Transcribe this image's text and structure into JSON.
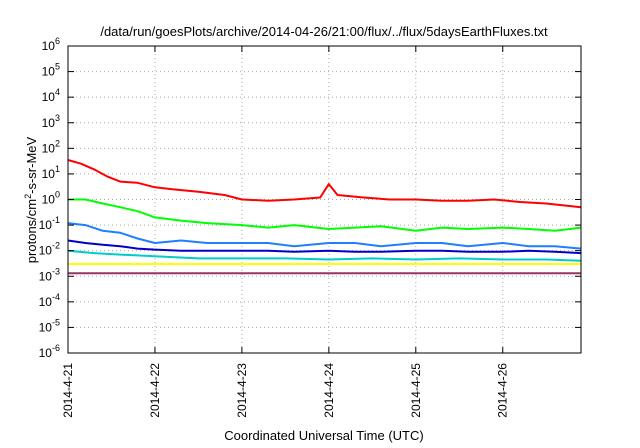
{
  "chart_data": {
    "type": "line",
    "title": "/data/run/goesPlots/archive/2014-04-26/21:00/flux/../flux/5daysEarthFluxes.txt",
    "xlabel": "Coordinated Universal Time (UTC)",
    "ylabel": "protons/cm²-s-sr-MeV",
    "ylabel_parts": {
      "pre": "protons/cm",
      "sup": "2",
      "post": "-s-sr-MeV"
    },
    "yscale": "log",
    "ylim": [
      1e-06,
      1000000.0
    ],
    "xlim": [
      0,
      5.9
    ],
    "x_ticks": [
      {
        "value": 0,
        "label": "2014-4-21"
      },
      {
        "value": 1,
        "label": "2014-4-22"
      },
      {
        "value": 2,
        "label": "2014-4-23"
      },
      {
        "value": 3,
        "label": "2014-4-24"
      },
      {
        "value": 4,
        "label": "2014-4-25"
      },
      {
        "value": 5,
        "label": "2014-4-26"
      }
    ],
    "y_ticks": [
      {
        "value": -6,
        "base": "10",
        "exp": "-6"
      },
      {
        "value": -5,
        "base": "10",
        "exp": "-5"
      },
      {
        "value": -4,
        "base": "10",
        "exp": "-4"
      },
      {
        "value": -3,
        "base": "10",
        "exp": "-3"
      },
      {
        "value": -2,
        "base": "10",
        "exp": "-2"
      },
      {
        "value": -1,
        "base": "10",
        "exp": "-1"
      },
      {
        "value": 0,
        "base": "10",
        "exp": "0"
      },
      {
        "value": 1,
        "base": "10",
        "exp": "1"
      },
      {
        "value": 2,
        "base": "10",
        "exp": "2"
      },
      {
        "value": 3,
        "base": "10",
        "exp": "3"
      },
      {
        "value": 4,
        "base": "10",
        "exp": "4"
      },
      {
        "value": 5,
        "base": "10",
        "exp": "5"
      },
      {
        "value": 6,
        "base": "10",
        "exp": "6"
      }
    ],
    "grid": true,
    "series": [
      {
        "color": "#ff0000",
        "x": [
          0,
          0.15,
          0.3,
          0.45,
          0.6,
          0.8,
          1.0,
          1.2,
          1.5,
          1.8,
          2.0,
          2.3,
          2.6,
          2.9,
          3.0,
          3.1,
          3.4,
          3.7,
          4.0,
          4.3,
          4.6,
          4.9,
          5.2,
          5.5,
          5.9
        ],
        "y": [
          35,
          25,
          15,
          8,
          5,
          4.5,
          3,
          2.5,
          2,
          1.5,
          1,
          0.9,
          1.0,
          1.2,
          4,
          1.5,
          1.2,
          1.0,
          1.0,
          0.9,
          0.9,
          1.0,
          0.8,
          0.7,
          0.5
        ]
      },
      {
        "color": "#00ff00",
        "x": [
          0,
          0.2,
          0.4,
          0.6,
          0.8,
          1.0,
          1.3,
          1.6,
          2.0,
          2.3,
          2.6,
          3.0,
          3.3,
          3.6,
          4.0,
          4.3,
          4.6,
          5.0,
          5.3,
          5.6,
          5.9
        ],
        "y": [
          1.0,
          1.0,
          0.7,
          0.5,
          0.35,
          0.2,
          0.15,
          0.12,
          0.1,
          0.08,
          0.1,
          0.07,
          0.08,
          0.09,
          0.06,
          0.08,
          0.07,
          0.08,
          0.07,
          0.06,
          0.08
        ]
      },
      {
        "color": "#1e7fff",
        "x": [
          0,
          0.2,
          0.4,
          0.6,
          0.8,
          1.0,
          1.3,
          1.6,
          2.0,
          2.3,
          2.6,
          3.0,
          3.3,
          3.6,
          4.0,
          4.3,
          4.6,
          5.0,
          5.3,
          5.6,
          5.9
        ],
        "y": [
          0.12,
          0.1,
          0.06,
          0.05,
          0.03,
          0.02,
          0.025,
          0.02,
          0.02,
          0.02,
          0.015,
          0.02,
          0.02,
          0.015,
          0.02,
          0.02,
          0.015,
          0.02,
          0.015,
          0.015,
          0.012
        ]
      },
      {
        "color": "#0000cc",
        "x": [
          0,
          0.2,
          0.4,
          0.6,
          0.8,
          1.0,
          1.3,
          1.6,
          2.0,
          2.3,
          2.6,
          3.0,
          3.3,
          3.6,
          4.0,
          4.3,
          4.6,
          5.0,
          5.3,
          5.6,
          5.9
        ],
        "y": [
          0.025,
          0.02,
          0.017,
          0.015,
          0.012,
          0.011,
          0.01,
          0.01,
          0.01,
          0.01,
          0.009,
          0.01,
          0.009,
          0.009,
          0.01,
          0.01,
          0.009,
          0.009,
          0.01,
          0.009,
          0.008
        ]
      },
      {
        "color": "#00cccc",
        "x": [
          0,
          0.3,
          0.6,
          1.0,
          1.5,
          2.0,
          2.5,
          3.0,
          3.5,
          4.0,
          4.5,
          5.0,
          5.5,
          5.9
        ],
        "y": [
          0.01,
          0.008,
          0.007,
          0.006,
          0.005,
          0.005,
          0.005,
          0.0045,
          0.005,
          0.0045,
          0.005,
          0.0045,
          0.0045,
          0.004
        ]
      },
      {
        "color": "#ffff00",
        "x": [
          0,
          0.5,
          1.0,
          1.5,
          2.0,
          2.5,
          3.0,
          3.5,
          4.0,
          4.5,
          5.0,
          5.5,
          5.9
        ],
        "y": [
          0.003,
          0.003,
          0.003,
          0.003,
          0.003,
          0.003,
          0.003,
          0.003,
          0.003,
          0.003,
          0.003,
          0.003,
          0.003
        ]
      },
      {
        "color": "#993366",
        "x": [
          0,
          0.5,
          1.0,
          1.5,
          2.0,
          2.5,
          3.0,
          3.5,
          4.0,
          4.5,
          5.0,
          5.5,
          5.9
        ],
        "y": [
          0.0013,
          0.0013,
          0.0013,
          0.0013,
          0.0013,
          0.0013,
          0.0013,
          0.0013,
          0.0013,
          0.0013,
          0.0013,
          0.0013,
          0.0013
        ]
      }
    ]
  }
}
